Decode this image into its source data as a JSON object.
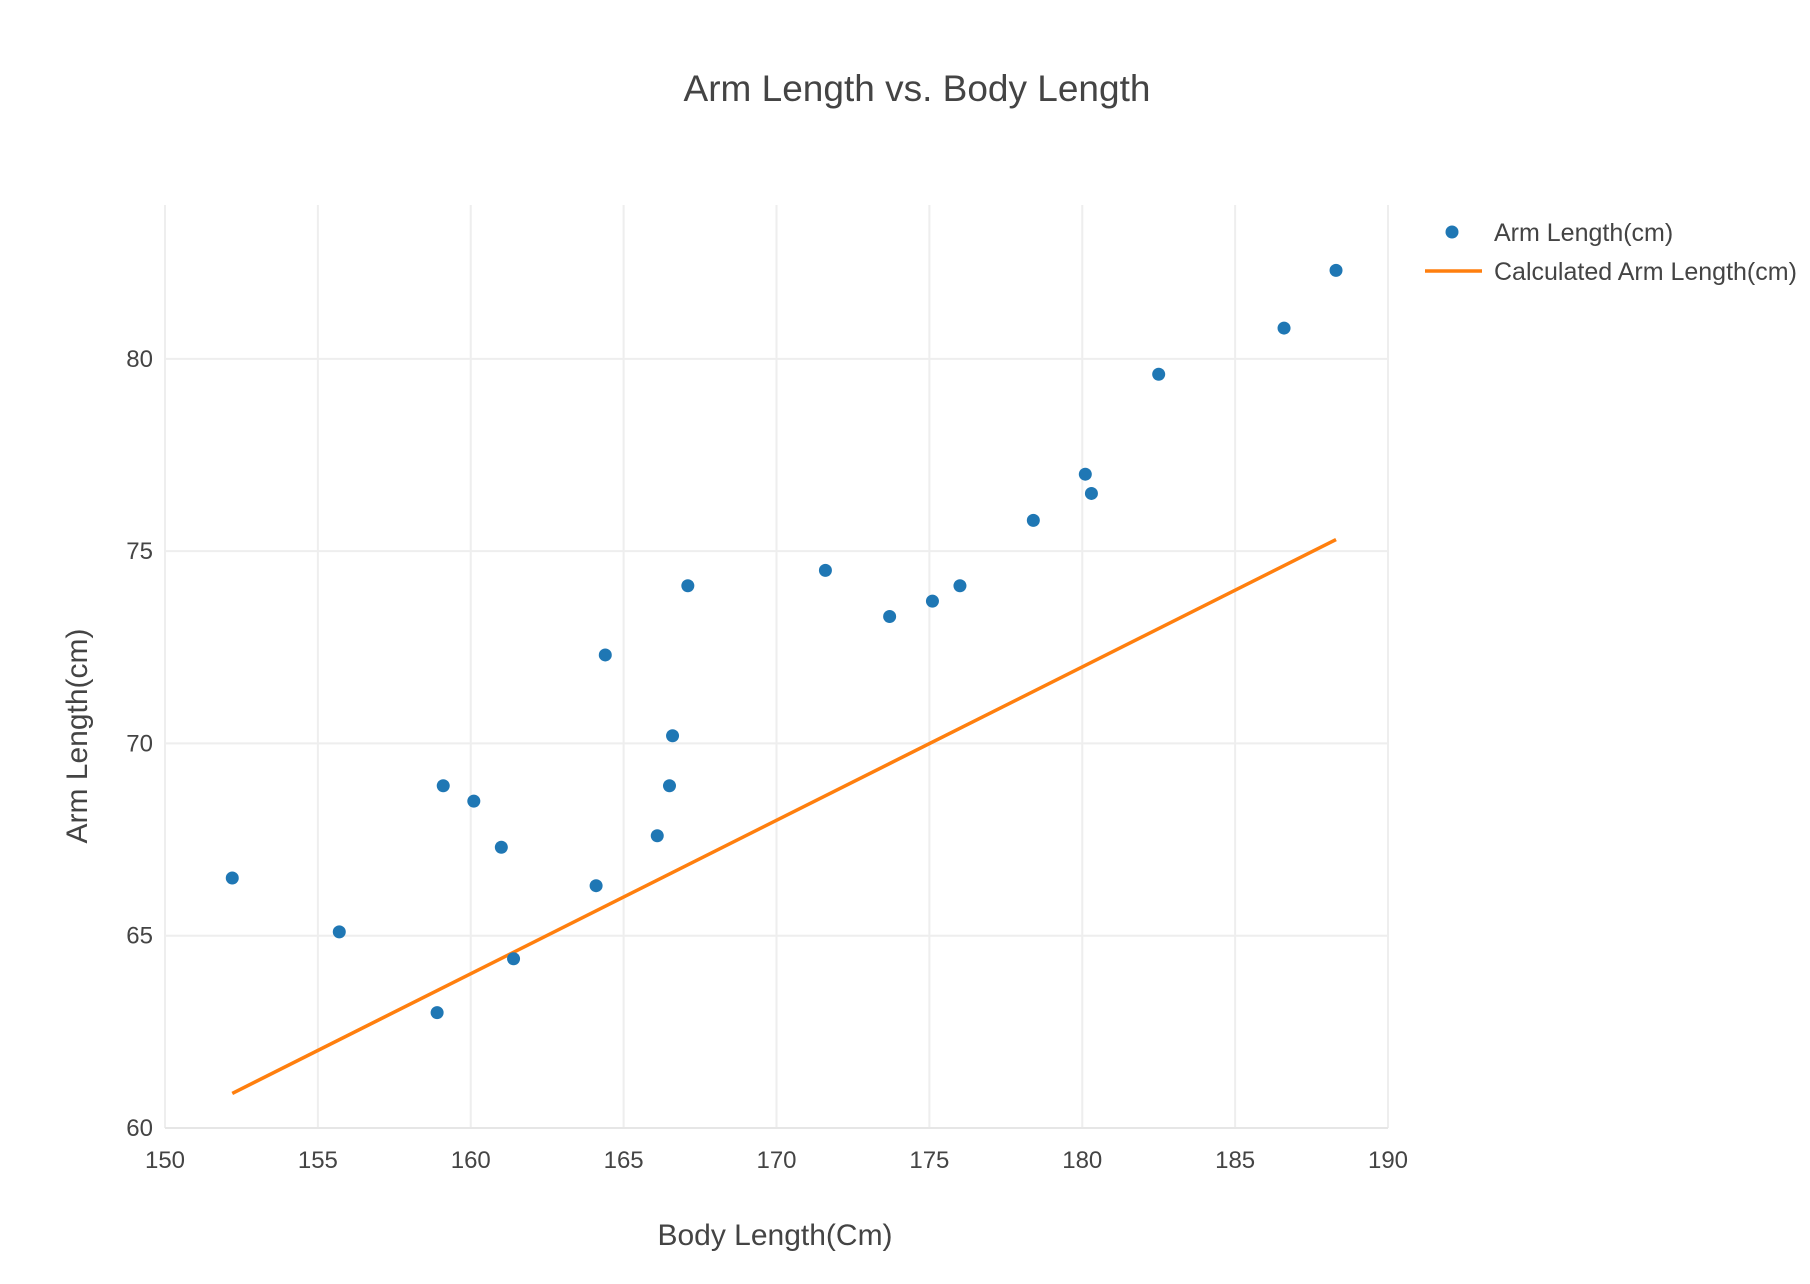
{
  "chart_data": {
    "type": "scatter",
    "title": "Arm Length vs. Body Length",
    "xlabel": "Body Length(Cm)",
    "ylabel": "Arm Length(cm)",
    "xlim": [
      150,
      190
    ],
    "ylim": [
      60,
      84
    ],
    "xticks": [
      "150",
      "155",
      "160",
      "165",
      "170",
      "175",
      "180",
      "185",
      "190"
    ],
    "yticks": [
      "60",
      "65",
      "70",
      "75",
      "80"
    ],
    "grid": true,
    "legend_position": "top-right",
    "series": [
      {
        "name": "Arm Length(cm)",
        "mode": "markers",
        "color": "#1f77b4",
        "x": [
          152.2,
          155.7,
          158.9,
          159.1,
          160.1,
          161.0,
          161.4,
          164.1,
          164.4,
          166.1,
          166.5,
          166.6,
          167.1,
          171.6,
          173.7,
          175.1,
          176.0,
          178.4,
          180.1,
          180.3,
          182.5,
          186.6,
          188.3
        ],
        "y": [
          66.5,
          65.1,
          63.0,
          68.9,
          68.5,
          67.3,
          64.4,
          66.3,
          72.3,
          67.6,
          68.9,
          70.2,
          74.1,
          74.5,
          73.3,
          73.7,
          74.1,
          75.8,
          77.0,
          76.5,
          79.6,
          80.8,
          82.3
        ]
      },
      {
        "name": "Calculated Arm Length(cm)",
        "mode": "lines",
        "color": "#ff7f0e",
        "x": [
          152.2,
          188.3
        ],
        "y": [
          60.9,
          75.3
        ]
      }
    ]
  }
}
